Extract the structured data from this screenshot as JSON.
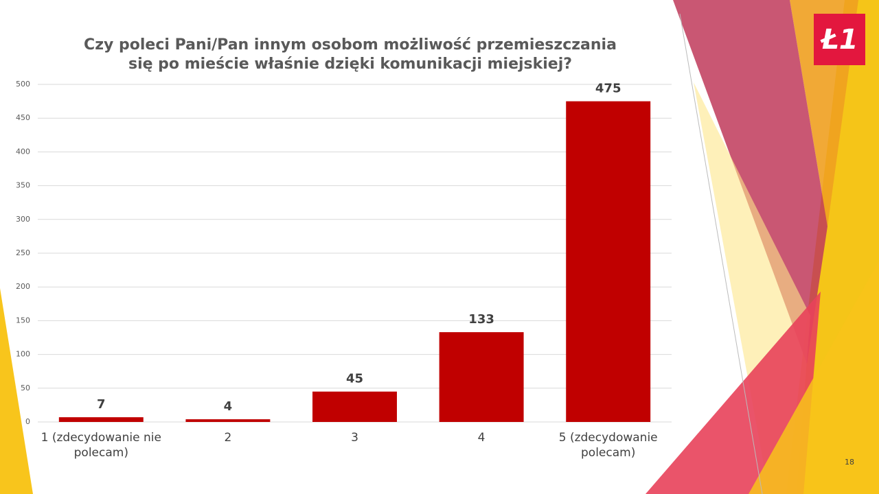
{
  "chart_data": {
    "type": "bar",
    "title": "Czy poleci Pani/Pan innym osobom możliwość przemieszczania się po mieście właśnie dzięki komunikacji miejskiej?",
    "categories": [
      "1 (zdecydowanie nie polecam)",
      "2",
      "3",
      "4",
      "5 (zdecydowanie polecam)"
    ],
    "values": [
      7,
      4,
      45,
      133,
      475
    ],
    "color": "#c00000",
    "ylim": [
      0,
      500
    ],
    "yticks": [
      0,
      50,
      100,
      150,
      200,
      250,
      300,
      350,
      400,
      450,
      500
    ],
    "grid": true
  },
  "slide": {
    "logo": "Ł1",
    "page_number": "18"
  }
}
